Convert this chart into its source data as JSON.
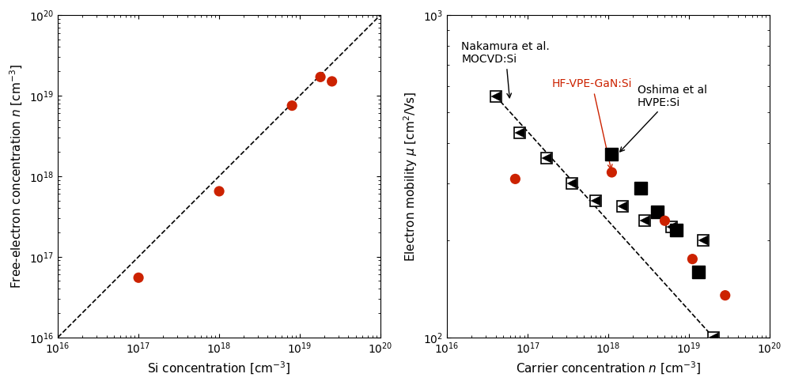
{
  "left_plot": {
    "xlabel": "Si concentration [cm$^{-3}$]",
    "ylabel": "Free-electron concentration $n$ [cm$^{-3}$]",
    "xlim": [
      1e+16,
      1e+20
    ],
    "ylim": [
      1e+16,
      1e+20
    ],
    "data_x": [
      1e+17,
      1e+18,
      8e+18,
      1.8e+19,
      2.5e+19
    ],
    "data_y": [
      5.5e+16,
      6.5e+17,
      7.5e+18,
      1.7e+19,
      1.5e+19
    ],
    "data_color": "#cc2200",
    "dashed_line_x": [
      1e+16,
      1e+20
    ],
    "dashed_line_y": [
      1e+16,
      1e+20
    ]
  },
  "right_plot": {
    "xlabel": "Carrier concentration $n$ [cm$^{-3}$]",
    "ylabel": "Electron mobility $\\mu$ [cm$^{2}$/Vs]",
    "xlim": [
      1e+16,
      1e+20
    ],
    "ylim": [
      100,
      1000
    ],
    "hfvpe_x": [
      7e+16,
      1.1e+18,
      5e+18,
      1.1e+19,
      2.8e+19
    ],
    "hfvpe_y": [
      310,
      325,
      230,
      175,
      135
    ],
    "nakamura_x": [
      4e+16,
      8e+16,
      1.7e+17,
      3.5e+17,
      7e+17,
      1.5e+18,
      2.8e+18,
      6e+18,
      1.5e+19,
      2e+19
    ],
    "nakamura_y": [
      560,
      430,
      360,
      300,
      265,
      255,
      230,
      220,
      200,
      100
    ],
    "oshima_x": [
      1.1e+18,
      2.5e+18,
      4e+18,
      7e+18,
      1.3e+19
    ],
    "oshima_y": [
      370,
      290,
      245,
      215,
      160
    ],
    "hfvpe_color": "#cc2200",
    "dashed_line_x": [
      4e+16,
      2e+19
    ],
    "dashed_line_y": [
      560,
      100
    ]
  },
  "annotation": {
    "nakamura_text": "Nakamura et al.\nMOCVD:Si",
    "hfvpe_text": "HF-VPE-GaN:Si",
    "oshima_text": "Oshima et al\nHVPE:Si",
    "hfvpe_text_color": "#cc2200",
    "other_text_color": "#000000"
  }
}
